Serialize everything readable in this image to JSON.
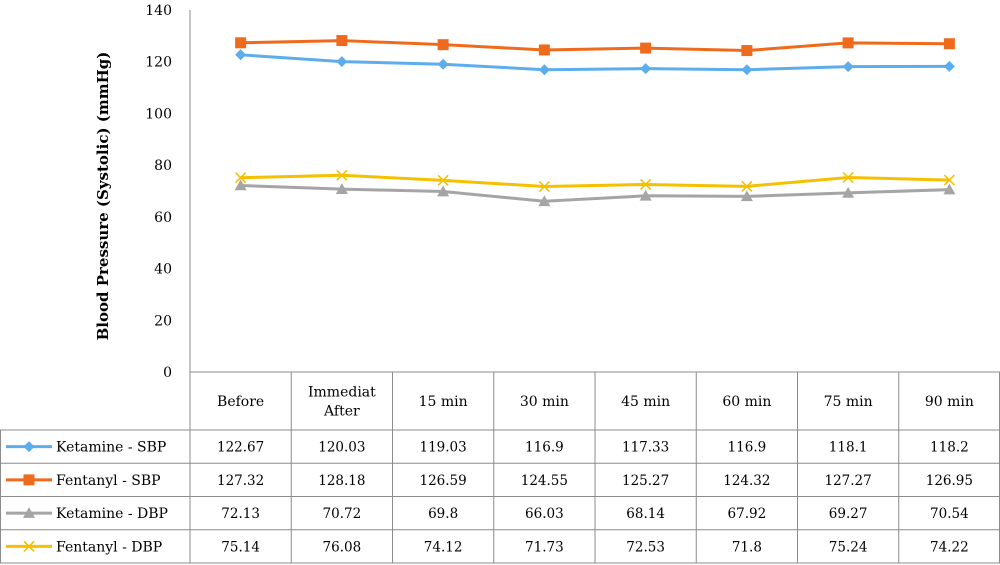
{
  "chart_data": {
    "type": "line",
    "title": "",
    "ylabel": "Blood Pressure (Systolic) (mmHg)",
    "xlabel": "",
    "ylim": [
      0,
      140
    ],
    "yticks": [
      0,
      20,
      40,
      60,
      80,
      100,
      120,
      140
    ],
    "grid": false,
    "legend": "data-table",
    "categories": [
      [
        "Before"
      ],
      [
        "Immediat",
        "After"
      ],
      [
        "15 min"
      ],
      [
        "30 min"
      ],
      [
        "45 min"
      ],
      [
        "60 min"
      ],
      [
        "75 min"
      ],
      [
        "90 min"
      ]
    ],
    "series": [
      {
        "name": "Ketamine - SBP",
        "color": "#5DADEC",
        "marker": "diamond",
        "values": [
          122.67,
          120.03,
          119.03,
          116.9,
          117.33,
          116.9,
          118.1,
          118.2
        ],
        "labels": [
          "122.67",
          "120.03",
          "119.03",
          "116.9",
          "117.33",
          "116.9",
          "118.1",
          "118.2"
        ]
      },
      {
        "name": "Fentanyl - SBP",
        "color": "#F06A1D",
        "marker": "square",
        "values": [
          127.32,
          128.18,
          126.59,
          124.55,
          125.27,
          124.32,
          127.27,
          126.95
        ],
        "labels": [
          "127.32",
          "128.18",
          "126.59",
          "124.55",
          "125.27",
          "124.32",
          "127.27",
          "126.95"
        ]
      },
      {
        "name": "Ketamine - DBP",
        "color": "#A5A5A5",
        "marker": "triangle",
        "values": [
          72.13,
          70.72,
          69.8,
          66.03,
          68.14,
          67.92,
          69.27,
          70.54
        ],
        "labels": [
          "72.13",
          "70.72",
          "69.8",
          "66.03",
          "68.14",
          "67.92",
          "69.27",
          "70.54"
        ]
      },
      {
        "name": "Fentanyl - DBP",
        "color": "#F5C000",
        "marker": "x",
        "values": [
          75.14,
          76.08,
          74.12,
          71.73,
          72.53,
          71.8,
          75.24,
          74.22
        ],
        "labels": [
          "75.14",
          "76.08",
          "74.12",
          "71.73",
          "72.53",
          "71.8",
          "75.24",
          "74.22"
        ]
      }
    ]
  }
}
